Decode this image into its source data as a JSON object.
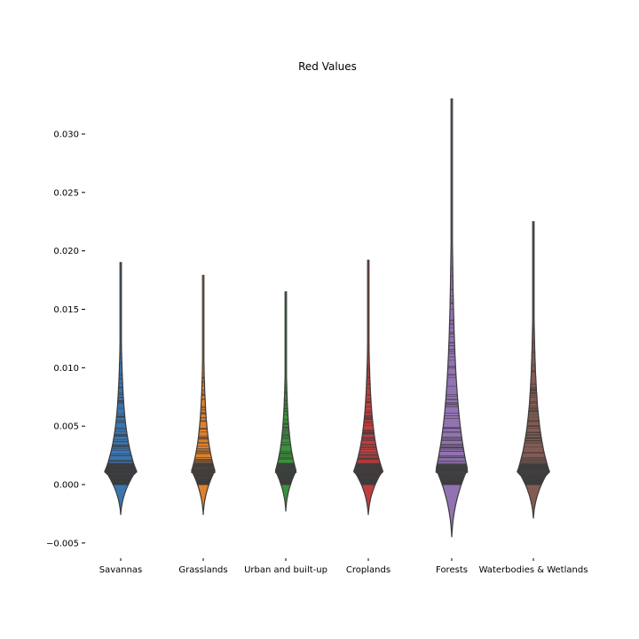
{
  "chart_data": {
    "type": "violin",
    "title": "Red Values",
    "xlabel": "",
    "ylabel": "",
    "ylim": [
      -0.006,
      0.0325
    ],
    "yticks": [
      -0.005,
      0.0,
      0.005,
      0.01,
      0.015,
      0.02,
      0.025,
      0.03
    ],
    "ytick_labels": [
      "−0.005",
      "0.000",
      "0.005",
      "0.010",
      "0.015",
      "0.020",
      "0.025",
      "0.030"
    ],
    "grid": false,
    "inner": "stick",
    "categories": [
      "Savannas",
      "Grasslands",
      "Urban and built-up",
      "Croplands",
      "Forests",
      "Waterbodies & Wetlands"
    ],
    "colors": [
      "#3a75b0",
      "#e1812c",
      "#3a923a",
      "#c03d3e",
      "#9372b2",
      "#845b53"
    ],
    "series": [
      {
        "min": -0.0026,
        "max": 0.019,
        "max_halfwidth": 0.0012
      },
      {
        "min": -0.0026,
        "max": 0.0179,
        "max_halfwidth": 0.0009
      },
      {
        "min": -0.0023,
        "max": 0.0165,
        "max_halfwidth": 0.0008
      },
      {
        "min": -0.0026,
        "max": 0.0192,
        "max_halfwidth": 0.0011
      },
      {
        "min": -0.0045,
        "max": 0.033,
        "max_halfwidth": 0.0012
      },
      {
        "min": -0.0029,
        "max": 0.0225,
        "max_halfwidth": 0.0012
      }
    ]
  }
}
